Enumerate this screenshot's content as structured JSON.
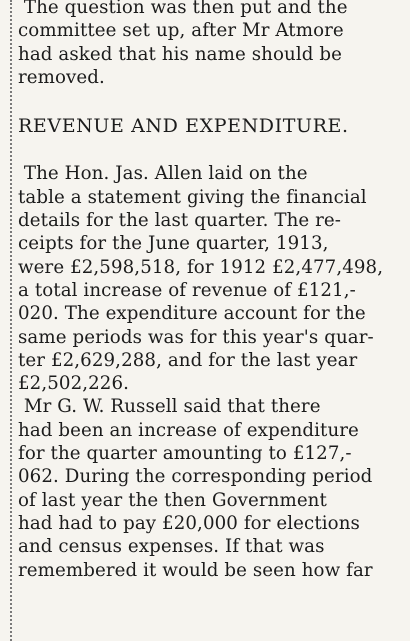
{
  "article": {
    "intro_lines": [
      " The question was then put and the",
      "committee set up, after Mr Atmore",
      "had asked that his name should be",
      "removed."
    ],
    "heading": "REVENUE AND EXPENDITURE.",
    "para1_lines": [
      " The Hon. Jas. Allen laid on the",
      "table a statement giving the financial",
      "details for the last quarter. The re-",
      "ceipts for the June quarter, 1913,",
      "were £2,598,518, for 1912 £2,477,498,",
      "a total increase of revenue of £121,-",
      "020. The expenditure account for the",
      "same periods was for this year's quar-",
      "ter £2,629,288, and for the last year",
      "£2,502,226."
    ],
    "para2_lines": [
      " Mr G. W. Russell said that there",
      "had been an increase of expenditure",
      "for the quarter amounting to £127,-",
      "062. During the corresponding period",
      "of last year the then Government",
      "had had to pay £20,000 for elections",
      "and census expenses. If that was",
      "remembered it would be seen how far"
    ]
  }
}
